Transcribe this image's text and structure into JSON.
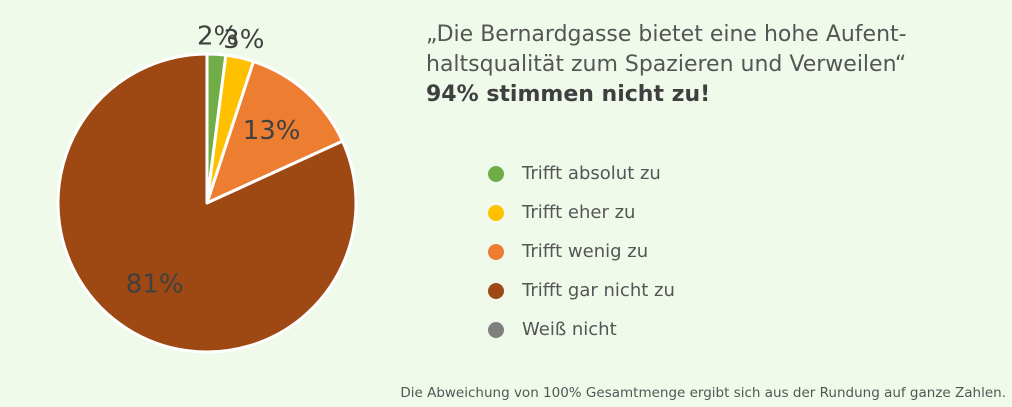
{
  "headline": {
    "quote_line1": "„Die Bernardgasse bietet eine hohe Aufent-",
    "quote_line2": "haltsqualität zum Spazieren und Verweilen“",
    "emphasis": "94% stimmen nicht zu!"
  },
  "chart_data": {
    "type": "pie",
    "start_angle": "top",
    "direction": "clockwise",
    "categories": [
      "Trifft absolut zu",
      "Trifft eher zu",
      "Trifft wenig zu",
      "Trifft gar nicht zu",
      "Weiß nicht"
    ],
    "values": [
      2,
      3,
      13,
      81,
      0
    ],
    "value_labels": [
      "2%",
      "3%",
      "13%",
      "81%",
      ""
    ],
    "colors": [
      "#70ad47",
      "#ffc000",
      "#ed7d31",
      "#9e4914",
      "#7f7f7f"
    ],
    "slice_border_color": "#ffffff",
    "legend_position": "right"
  },
  "footnote": "Die Abweichung von 100% Gesamtmenge ergibt sich aus der Rundung auf ganze Zahlen."
}
